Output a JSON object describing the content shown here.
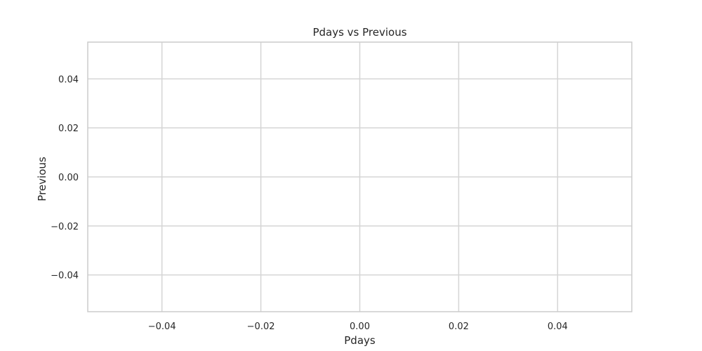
{
  "chart_data": {
    "type": "scatter",
    "title": "Pdays vs Previous",
    "xlabel": "Pdays",
    "ylabel": "Previous",
    "xlim": [
      -0.055,
      0.055
    ],
    "ylim": [
      -0.055,
      0.055
    ],
    "xticks": [
      -0.04,
      -0.02,
      0.0,
      0.02,
      0.04
    ],
    "yticks": [
      -0.04,
      -0.02,
      0.0,
      0.02,
      0.04
    ],
    "xtick_labels": [
      "−0.04",
      "−0.02",
      "0.00",
      "0.02",
      "0.04"
    ],
    "ytick_labels": [
      "−0.04",
      "−0.02",
      "0.00",
      "0.02",
      "0.04"
    ],
    "grid": true,
    "x": [],
    "y": [],
    "colors": {
      "grid": "#d5d5d5",
      "spine": "#cccccc",
      "text": "#262626",
      "background": "#ffffff",
      "marker": "#4c72b0"
    }
  }
}
